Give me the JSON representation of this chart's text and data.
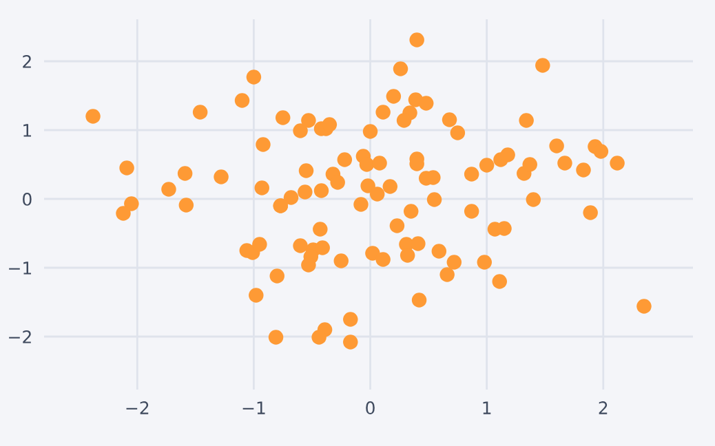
{
  "chart_data": {
    "type": "scatter",
    "marker": "circle",
    "grid": true,
    "legend": false,
    "xlim": [
      -2.8,
      2.77
    ],
    "ylim": [
      -2.77,
      2.61
    ],
    "xticks": [
      {
        "value": -2,
        "label": "−2"
      },
      {
        "value": -1,
        "label": "−1"
      },
      0,
      1,
      2
    ],
    "yticks": [
      {
        "value": -2,
        "label": "−2"
      },
      {
        "value": -1,
        "label": "−1"
      },
      0,
      1,
      2
    ],
    "series": [
      {
        "color": "#fe9a35",
        "x": [
          -2.38,
          -2.09,
          -2.05,
          -2.12,
          -1.73,
          -1.59,
          -1.58,
          -1.46,
          -1.28,
          -1.1,
          -1.0,
          -0.92,
          -0.93,
          -0.75,
          -0.77,
          -0.68,
          -0.6,
          -0.53,
          -0.55,
          -0.56,
          -0.42,
          -0.42,
          -0.38,
          -0.35,
          -0.32,
          -0.28,
          -0.22,
          -0.06,
          -0.03,
          -0.02,
          -0.08,
          0.0,
          0.4,
          0.26,
          0.2,
          0.11,
          0.39,
          0.48,
          0.34,
          0.29,
          0.68,
          0.75,
          1.48,
          1.34,
          0.08,
          0.4,
          0.4,
          0.06,
          0.17,
          0.48,
          0.54,
          0.55,
          0.87,
          1.0,
          1.12,
          1.18,
          1.32,
          1.37,
          1.4,
          1.6,
          1.67,
          1.83,
          1.93,
          1.98,
          2.12,
          -1.06,
          -1.01,
          -0.95,
          -0.8,
          -0.98,
          -0.81,
          -0.77,
          -0.43,
          -0.6,
          -0.49,
          -0.41,
          -0.51,
          -0.53,
          -0.25,
          0.02,
          -0.17,
          -0.39,
          -0.44,
          -0.17,
          0.35,
          0.23,
          0.87,
          1.07,
          1.15,
          1.89,
          0.31,
          0.41,
          0.11,
          0.32,
          0.59,
          0.72,
          0.66,
          0.98,
          1.11,
          0.42,
          2.35
        ],
        "values": [
          1.2,
          0.45,
          -0.07,
          -0.21,
          0.14,
          0.37,
          -0.09,
          1.26,
          0.32,
          1.43,
          1.77,
          0.79,
          0.16,
          1.18,
          -0.1,
          0.02,
          0.99,
          1.14,
          0.41,
          0.1,
          0.12,
          1.02,
          1.02,
          1.08,
          0.36,
          0.24,
          0.57,
          0.62,
          0.5,
          0.19,
          -0.08,
          0.98,
          2.31,
          1.89,
          1.49,
          1.26,
          1.44,
          1.39,
          1.25,
          1.14,
          1.15,
          0.96,
          1.94,
          1.14,
          0.52,
          0.58,
          0.51,
          0.07,
          0.18,
          0.3,
          0.31,
          -0.01,
          0.36,
          0.49,
          0.57,
          0.64,
          0.37,
          0.5,
          -0.01,
          0.77,
          0.52,
          0.42,
          0.76,
          0.69,
          0.52,
          -0.75,
          -0.78,
          -0.66,
          -1.12,
          -1.4,
          -2.01,
          -0.1,
          -0.44,
          -0.68,
          -0.74,
          -0.71,
          -0.84,
          -0.96,
          -0.9,
          -0.79,
          -1.75,
          -1.9,
          -2.01,
          -2.08,
          -0.18,
          -0.39,
          -0.18,
          -0.44,
          -0.43,
          -0.2,
          -0.66,
          -0.65,
          -0.88,
          -0.82,
          -0.76,
          -0.92,
          -1.1,
          -0.92,
          -1.2,
          -1.47,
          -1.56
        ]
      }
    ]
  }
}
